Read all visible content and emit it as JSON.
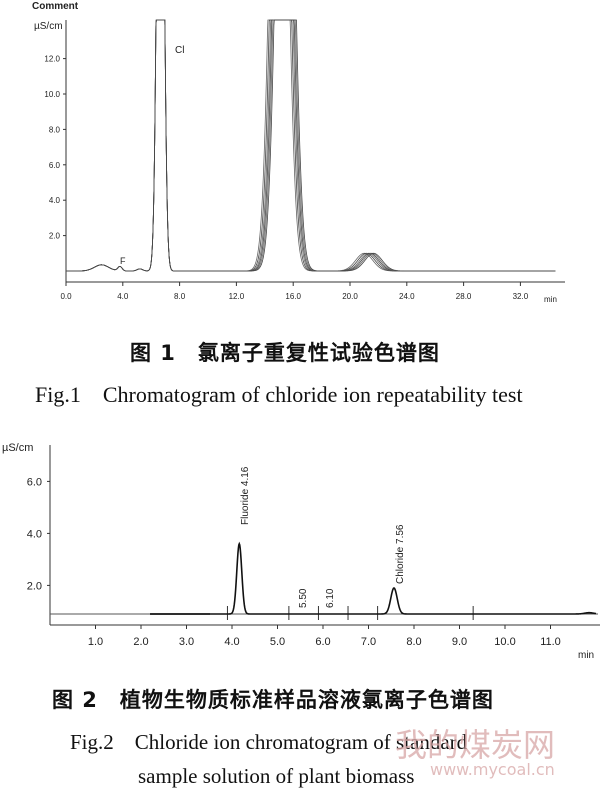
{
  "figure1": {
    "header": "Comment",
    "y_unit": "µS/cm",
    "x_unit": "min",
    "y_ticks": [
      "2.0",
      "4.0",
      "6.0",
      "8.0",
      "10.0",
      "12.0"
    ],
    "x_ticks": [
      "0.0",
      "4.0",
      "8.0",
      "12.0",
      "16.0",
      "20.0",
      "24.0",
      "28.0",
      "32.0"
    ],
    "peak_labels": [
      "Cl",
      "F"
    ],
    "caption_cn": "图 1　氯离子重复性试验色谱图",
    "caption_en": "Fig.1　Chromatogram of chloride ion repeatability test"
  },
  "figure2": {
    "y_unit": "µS/cm",
    "x_unit": "min",
    "y_ticks": [
      "2.0",
      "4.0",
      "6.0"
    ],
    "x_ticks": [
      "1.0",
      "2.0",
      "3.0",
      "4.0",
      "5.0",
      "6.0",
      "7.0",
      "8.0",
      "9.0",
      "10.0",
      "11.0"
    ],
    "peak_labels": [
      "Fluoride 4.16",
      "5.50",
      "6.10",
      "Chloride 7.56"
    ],
    "caption_cn": "图 2　植物生物质标准样品溶液氯离子色谱图",
    "caption_en_line1": "Fig.2　Chloride ion chromatogram of standard",
    "caption_en_line2": "sample solution of plant biomass"
  },
  "watermark": {
    "brand_cn": "我的煤炭网",
    "url": "www.mycoal.cn"
  },
  "chart_data": [
    {
      "type": "line",
      "ylabel": "µS/cm",
      "xlabel": "min",
      "xlim": [
        0,
        34.5
      ],
      "ylim": [
        0,
        14
      ],
      "peaks": [
        {
          "label": "F",
          "x": 3.8,
          "height": 0.3
        },
        {
          "label": "Cl",
          "x": 6.7,
          "height": 14
        },
        {
          "label": "",
          "x": 15.3,
          "height": 14
        },
        {
          "label": "",
          "x": 21.3,
          "height": 1.0
        }
      ]
    },
    {
      "type": "line",
      "ylabel": "µS/cm",
      "xlabel": "min",
      "xlim": [
        0,
        12
      ],
      "ylim": [
        0,
        7
      ],
      "peaks": [
        {
          "label": "Fluoride 4.16",
          "x": 4.16,
          "height": 2.7
        },
        {
          "label": "5.50",
          "x": 5.5,
          "height": 0
        },
        {
          "label": "6.10",
          "x": 6.1,
          "height": 0
        },
        {
          "label": "Chloride 7.56",
          "x": 7.56,
          "height": 1.0
        }
      ]
    }
  ]
}
